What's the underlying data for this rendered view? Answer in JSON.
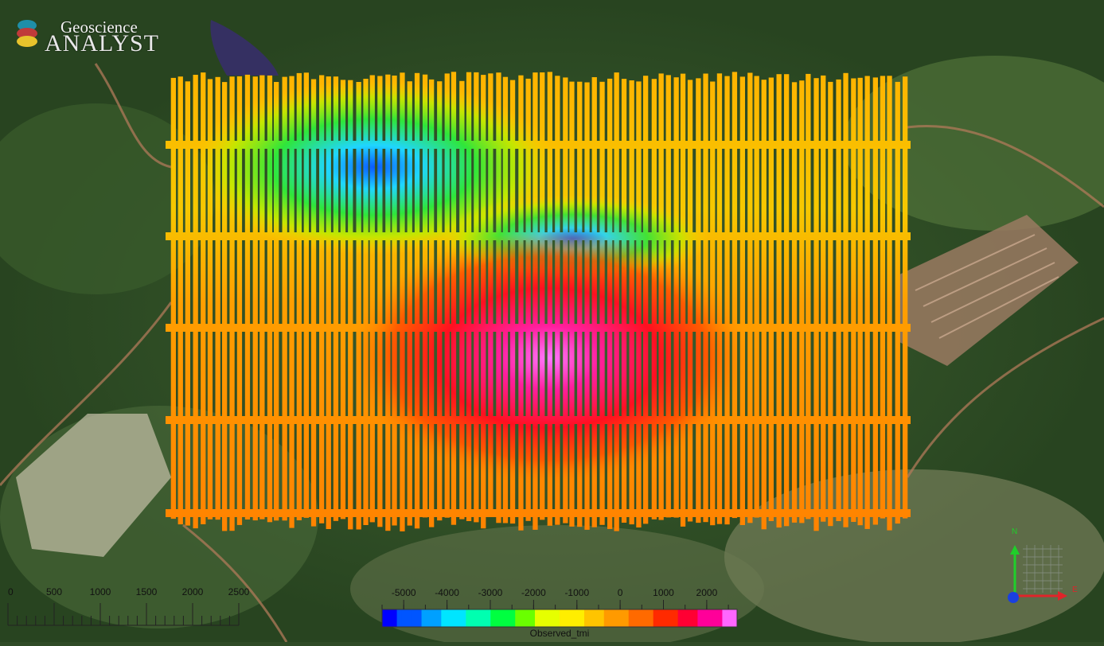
{
  "app": {
    "logo_line1": "Geoscience",
    "logo_line2": "ANALYST"
  },
  "map": {
    "layer": "Observed_tmi",
    "basemap": "satellite imagery",
    "survey_lines": "north-south flight lines with east-west tie lines"
  },
  "scale_bar": {
    "labels": [
      "0",
      "500",
      "1000",
      "1500",
      "2000",
      "2500"
    ]
  },
  "color_legend": {
    "title": "Observed_tmi",
    "tick_labels": [
      "-5000",
      "-4000",
      "-3000",
      "-2000",
      "-1000",
      "0",
      "1000",
      "2000"
    ],
    "min": -5500,
    "max": 2700,
    "colors": [
      "#0000ff",
      "#0055ff",
      "#00a0ff",
      "#00e5ff",
      "#00ffb0",
      "#00ff40",
      "#6aff00",
      "#e6ff00",
      "#ffee00",
      "#ffc400",
      "#ff9a00",
      "#ff6a00",
      "#ff2a00",
      "#ff0033",
      "#ff0099",
      "#ff66ff"
    ]
  },
  "axis_triad": {
    "north_label": "N",
    "east_label": "E"
  }
}
